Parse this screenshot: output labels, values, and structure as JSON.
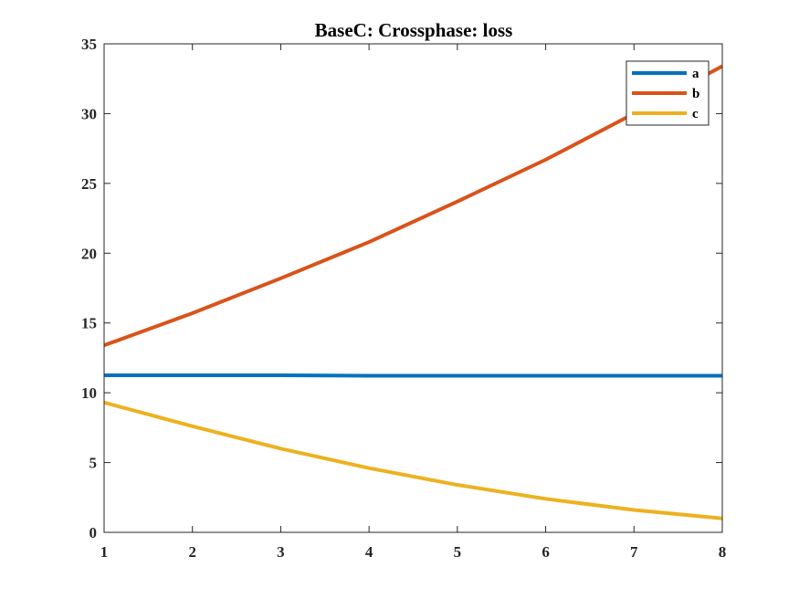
{
  "chart_data": {
    "type": "line",
    "title": "BaseC: Crossphase: loss",
    "xlabel": "",
    "ylabel": "",
    "x": [
      1,
      2,
      3,
      4,
      5,
      6,
      7,
      8
    ],
    "xlim": [
      1,
      8
    ],
    "ylim": [
      0,
      35
    ],
    "xticks": [
      "1",
      "2",
      "3",
      "4",
      "5",
      "6",
      "7",
      "8"
    ],
    "yticks": [
      "0",
      "5",
      "10",
      "15",
      "20",
      "25",
      "30",
      "35"
    ],
    "grid": false,
    "legend_position": "top-right",
    "series": [
      {
        "name": "a",
        "color": "#0072BD",
        "values": [
          11.25,
          11.25,
          11.25,
          11.22,
          11.22,
          11.22,
          11.22,
          11.22
        ]
      },
      {
        "name": "b",
        "color": "#D95319",
        "values": [
          13.4,
          15.7,
          18.2,
          20.8,
          23.7,
          26.7,
          30.0,
          33.4
        ]
      },
      {
        "name": "c",
        "color": "#EDB120",
        "values": [
          9.3,
          7.6,
          6.0,
          4.6,
          3.4,
          2.4,
          1.6,
          1.0
        ]
      }
    ]
  }
}
